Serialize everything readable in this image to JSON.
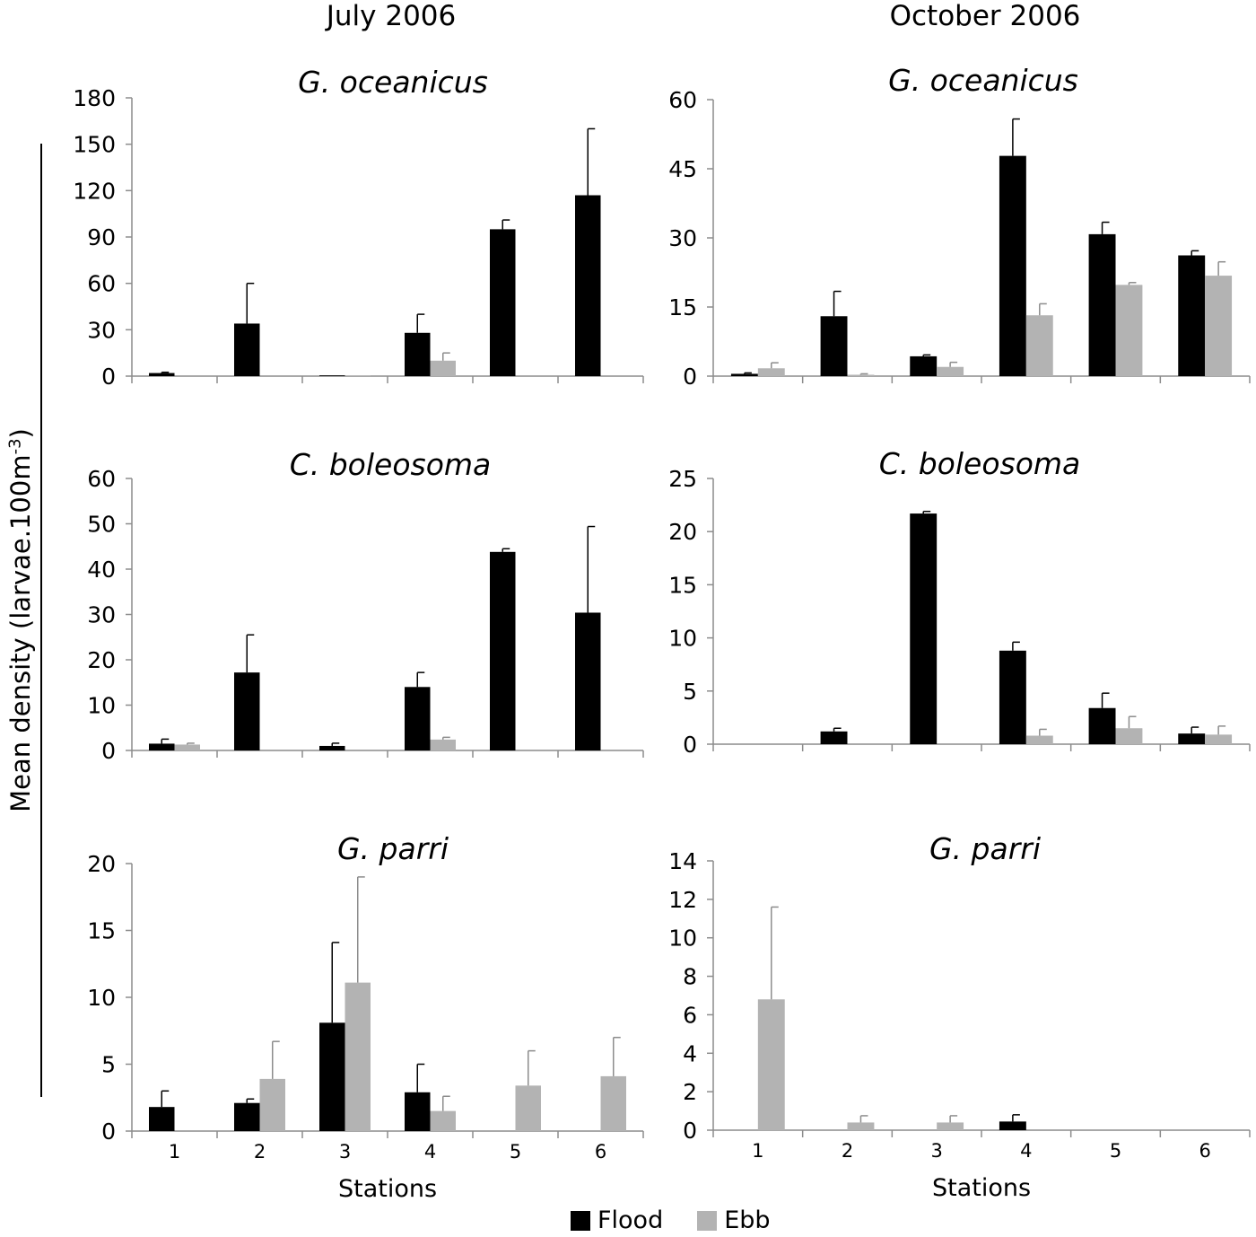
{
  "column_titles": {
    "left": "July 2006",
    "right": "October 2006"
  },
  "ylabel": {
    "main": "Mean density (larvae.100m",
    "sup": "-3",
    "close": ")"
  },
  "legend": [
    {
      "label": "Flood",
      "color": "#000000"
    },
    {
      "label": "Ebb",
      "color": "#b3b3b3"
    }
  ],
  "colors": {
    "flood": "#000000",
    "ebb": "#b3b3b3",
    "axis": "#8c8c8c"
  },
  "chart_data": [
    {
      "type": "bar",
      "title": "G. oceanicus",
      "period": "July 2006",
      "categories": [
        "1",
        "2",
        "3",
        "4",
        "5",
        "6"
      ],
      "xlabel": "",
      "ylabel": "",
      "ylim": [
        0,
        180
      ],
      "yticks": [
        0,
        30,
        60,
        90,
        120,
        150,
        180
      ],
      "series": [
        {
          "name": "Flood",
          "values": [
            2,
            34,
            0.5,
            28,
            95,
            117
          ],
          "errors": [
            0.5,
            26,
            0,
            12,
            6,
            43
          ]
        },
        {
          "name": "Ebb",
          "values": [
            0,
            0,
            0.5,
            10,
            0,
            0
          ],
          "errors": [
            0,
            0,
            0,
            5,
            0,
            0
          ]
        }
      ]
    },
    {
      "type": "bar",
      "title": "G. oceanicus",
      "period": "October 2006",
      "categories": [
        "1",
        "2",
        "3",
        "4",
        "5",
        "6"
      ],
      "xlabel": "",
      "ylabel": "",
      "ylim": [
        0,
        60
      ],
      "yticks": [
        0,
        15,
        30,
        45,
        60
      ],
      "series": [
        {
          "name": "Flood",
          "values": [
            0.5,
            13,
            4.3,
            47.8,
            30.8,
            26.2
          ],
          "errors": [
            0.2,
            5.4,
            0.3,
            8,
            2.6,
            1
          ]
        },
        {
          "name": "Ebb",
          "values": [
            1.7,
            0.3,
            2,
            13.2,
            19.8,
            21.8
          ],
          "errors": [
            1.2,
            0.2,
            1,
            2.5,
            0.5,
            3
          ]
        }
      ]
    },
    {
      "type": "bar",
      "title": "C. boleosoma",
      "period": "July 2006",
      "categories": [
        "1",
        "2",
        "3",
        "4",
        "5",
        "6"
      ],
      "xlabel": "",
      "ylabel": "",
      "ylim": [
        0,
        60
      ],
      "yticks": [
        0,
        10,
        20,
        30,
        40,
        50,
        60
      ],
      "series": [
        {
          "name": "Flood",
          "values": [
            1.5,
            17.2,
            1,
            14,
            43.8,
            30.4
          ],
          "errors": [
            1,
            8.3,
            0.6,
            3.2,
            0.7,
            19
          ]
        },
        {
          "name": "Ebb",
          "values": [
            1.3,
            0,
            0,
            2.4,
            0,
            0
          ],
          "errors": [
            0.3,
            0,
            0,
            0.5,
            0,
            0
          ]
        }
      ]
    },
    {
      "type": "bar",
      "title": "C. boleosoma",
      "period": "October 2006",
      "categories": [
        "1",
        "2",
        "3",
        "4",
        "5",
        "6"
      ],
      "xlabel": "",
      "ylabel": "",
      "ylim": [
        0,
        25
      ],
      "yticks": [
        0,
        5,
        10,
        15,
        20,
        25
      ],
      "series": [
        {
          "name": "Flood",
          "values": [
            0,
            1.2,
            21.7,
            8.8,
            3.4,
            1
          ],
          "errors": [
            0,
            0.3,
            0.2,
            0.8,
            1.4,
            0.6
          ]
        },
        {
          "name": "Ebb",
          "values": [
            0,
            0,
            0,
            0.8,
            1.5,
            0.9
          ],
          "errors": [
            0,
            0,
            0,
            0.6,
            1.1,
            0.8
          ]
        }
      ]
    },
    {
      "type": "bar",
      "title": "G. parri",
      "period": "July 2006",
      "categories": [
        "1",
        "2",
        "3",
        "4",
        "5",
        "6"
      ],
      "xlabel": "Stations",
      "ylabel": "",
      "ylim": [
        0,
        20
      ],
      "yticks": [
        0,
        5,
        10,
        15,
        20
      ],
      "series": [
        {
          "name": "Flood",
          "values": [
            1.8,
            2.1,
            8.1,
            2.9,
            0,
            0
          ],
          "errors": [
            1.2,
            0.3,
            6,
            2.1,
            0,
            0
          ]
        },
        {
          "name": "Ebb",
          "values": [
            0,
            3.9,
            11.1,
            1.5,
            3.4,
            4.1
          ],
          "errors": [
            0,
            2.8,
            7.9,
            1.1,
            2.6,
            2.9
          ]
        }
      ]
    },
    {
      "type": "bar",
      "title": "G. parri",
      "period": "October 2006",
      "categories": [
        "1",
        "2",
        "3",
        "4",
        "5",
        "6"
      ],
      "xlabel": "Stations",
      "ylabel": "",
      "ylim": [
        0,
        14
      ],
      "yticks": [
        0,
        2,
        4,
        6,
        8,
        10,
        12,
        14
      ],
      "series": [
        {
          "name": "Flood",
          "values": [
            0,
            0,
            0,
            0.45,
            0,
            0
          ],
          "errors": [
            0,
            0,
            0,
            0.35,
            0,
            0
          ]
        },
        {
          "name": "Ebb",
          "values": [
            6.8,
            0.4,
            0.4,
            0,
            0,
            0
          ],
          "errors": [
            4.8,
            0.35,
            0.35,
            0,
            0,
            0
          ]
        }
      ]
    }
  ]
}
